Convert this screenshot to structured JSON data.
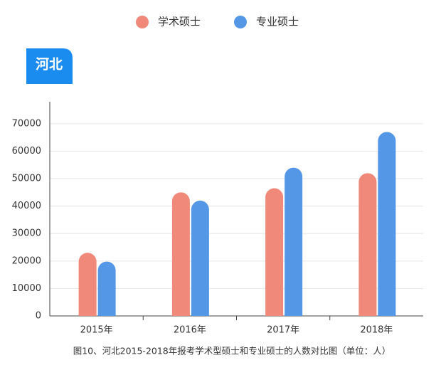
{
  "chart_data": {
    "type": "bar",
    "badge": "河北",
    "caption": "图10、河北2015-2018年报考学术型硕士和专业硕士的人数对比图（单位：人）",
    "categories": [
      "2015年",
      "2016年",
      "2017年",
      "2018年"
    ],
    "series": [
      {
        "name": "学术硕士",
        "color": "#f0897a",
        "values": [
          23000,
          45000,
          46500,
          52000
        ]
      },
      {
        "name": "专业硕士",
        "color": "#5497e6",
        "values": [
          19800,
          42000,
          54000,
          67000
        ]
      }
    ],
    "ylim": [
      0,
      78000
    ],
    "yticks": [
      0,
      10000,
      20000,
      30000,
      40000,
      50000,
      60000,
      70000
    ],
    "grid": true
  }
}
